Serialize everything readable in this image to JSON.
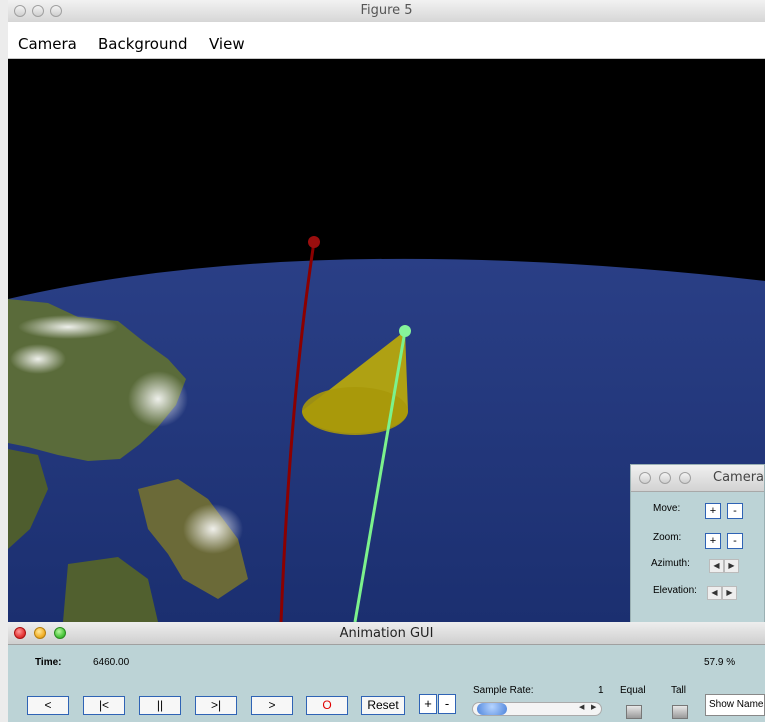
{
  "main_window": {
    "title": "Figure 5",
    "menu": [
      "Camera",
      "Background",
      "View"
    ]
  },
  "camera_panel": {
    "title": "Camera",
    "move_label": "Move:",
    "zoom_label": "Zoom:",
    "azimuth_label": "Azimuth:",
    "elevation_label": "Elevation:",
    "plus": "+",
    "minus": "-",
    "left_arrow": "◀",
    "right_arrow": "▶"
  },
  "animation_gui": {
    "title": "Animation GUI",
    "time_label": "Time:",
    "time_value": "6460.00",
    "percent": "57.9 %",
    "buttons": {
      "back": "<",
      "first": "|<",
      "pause": "||",
      "last": ">|",
      "forward": ">",
      "record": "O",
      "reset": "Reset",
      "plus": "+",
      "minus": "-"
    },
    "sample_rate_label": "Sample Rate:",
    "sample_rate_value": "1",
    "equal_label": "Equal",
    "tall_label": "Tall",
    "show_names_label": "Show Names"
  },
  "colors": {
    "background": "#000000",
    "earth_ocean": "#1d3a82",
    "orbit_red": "#8b0000",
    "orbit_green": "#7cf28c",
    "cone_yellow": "#c8b400",
    "panel_bg": "#bcd3d6",
    "button_border": "#2f63b5"
  }
}
